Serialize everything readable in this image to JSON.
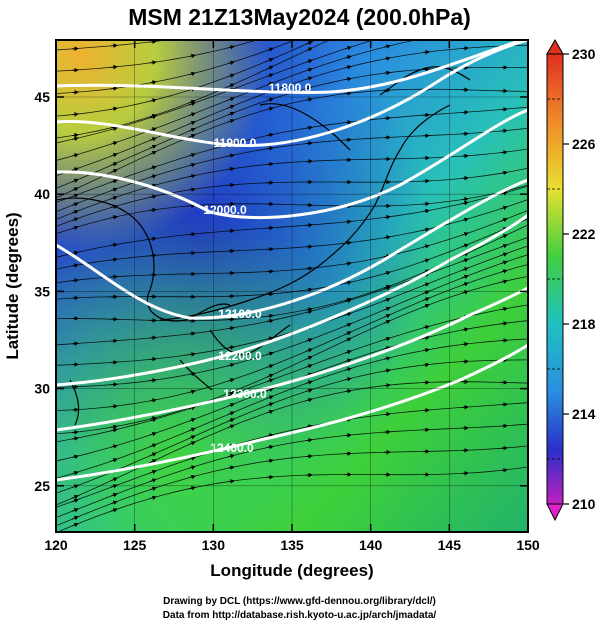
{
  "title": "MSM 21Z13May2024 (200.0hPa)",
  "xlabel": "Longitude (degrees)",
  "ylabel": "Latitude  (degrees)",
  "xticks": [
    "120",
    "125",
    "130",
    "135",
    "140",
    "145",
    "150"
  ],
  "yticks": [
    "45",
    "40",
    "35",
    "30",
    "25"
  ],
  "colorbar": {
    "labels": [
      "230",
      "226",
      "222",
      "218",
      "214",
      "210"
    ],
    "min": 210,
    "max": 230
  },
  "contours": [
    {
      "label": "11800.0"
    },
    {
      "label": "11900.0"
    },
    {
      "label": "12000.0"
    },
    {
      "label": "12100.0"
    },
    {
      "label": "12200.0"
    },
    {
      "label": "12300.0"
    },
    {
      "label": "12400.0"
    }
  ],
  "credits": {
    "line1": "Drawing by DCL (https://www.gfd-dennou.org/library/dcl/)",
    "line2": "Data from http://database.rish.kyoto-u.ac.jp/arch/jmadata/"
  },
  "colors": {
    "warm": "#e84a2a",
    "green": "#2ec84a",
    "cyan": "#22b8d8",
    "blue": "#2a3cd0",
    "magenta": "#d020c0",
    "contour": "#ffffff",
    "streamline": "#000000"
  }
}
